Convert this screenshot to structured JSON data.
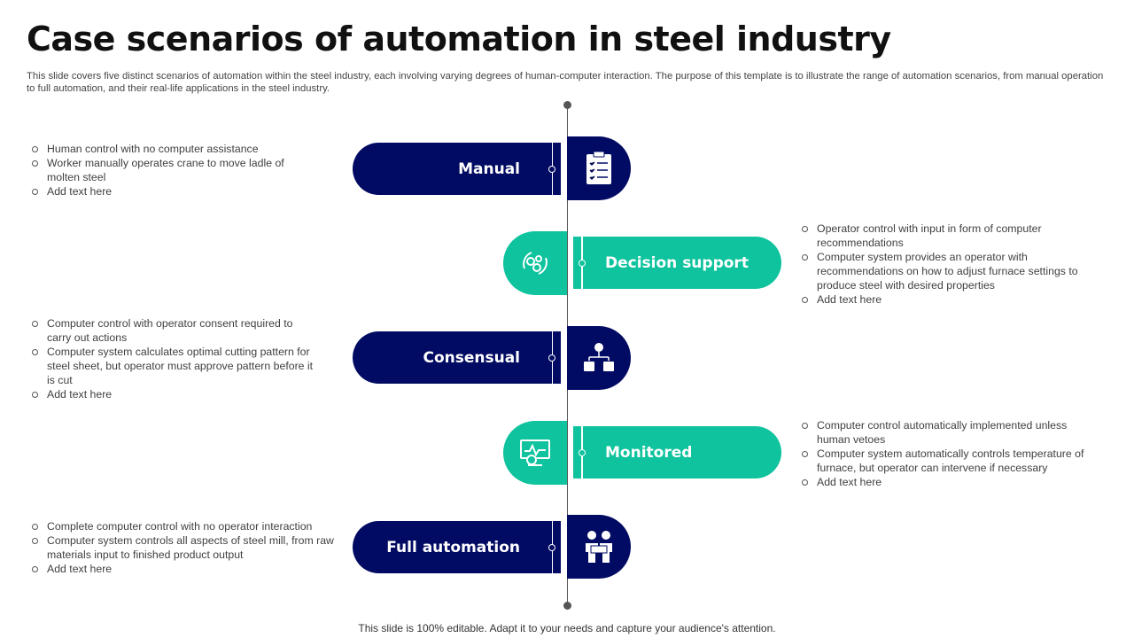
{
  "title": "Case scenarios of automation in steel industry",
  "subtitle": "This slide covers five distinct scenarios of automation within the steel industry, each involving varying degrees of human-computer interaction. The purpose of this template is to illustrate the range of automation scenarios, from manual operation to full automation, and their real-life applications in the steel industry.",
  "colors": {
    "navy": "#020b63",
    "teal": "#0ec39d"
  },
  "scenarios": [
    {
      "label": "Manual",
      "icon": "clipboard-checklist-icon",
      "bullets": [
        "Human control with no computer assistance",
        "Worker manually operates crane to move ladle of molten steel",
        "Add text here"
      ]
    },
    {
      "label": "Decision support",
      "icon": "gears-cycle-icon",
      "bullets": [
        "Operator control with input in form of computer recommendations",
        "Computer system provides an operator with recommendations on how to adjust furnace settings to produce steel with desired properties",
        "Add text here"
      ]
    },
    {
      "label": "Consensual",
      "icon": "hierarchy-people-icon",
      "bullets": [
        "Computer control with operator consent required to carry out actions",
        "Computer system calculates optimal cutting pattern for steel sheet, but operator must approve pattern before it is cut",
        "Add text here"
      ]
    },
    {
      "label": "Monitored",
      "icon": "monitor-chart-icon",
      "bullets": [
        "Computer control automatically implemented unless human vetoes",
        "Computer system automatically controls temperature of furnace, but operator can intervene if necessary",
        "Add text here"
      ]
    },
    {
      "label": "Full automation",
      "icon": "workers-icon",
      "bullets": [
        "Complete computer control with no operator interaction",
        "Computer system controls all aspects of steel mill, from raw materials input to finished product output",
        "Add text here"
      ]
    }
  ],
  "footer": "This slide is 100% editable. Adapt it to your needs and capture your audience's attention."
}
